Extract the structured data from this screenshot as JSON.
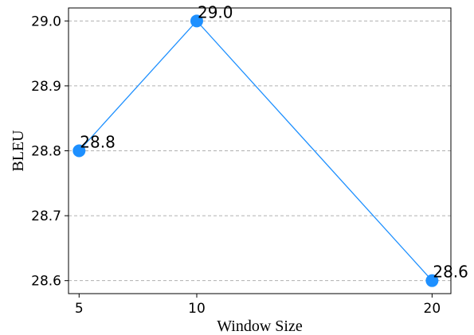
{
  "chart_data": {
    "type": "line",
    "xlabel": "Window Size",
    "ylabel": "BLEU",
    "x": [
      5,
      10,
      20
    ],
    "series": [
      {
        "values": [
          28.8,
          29.0,
          28.6
        ],
        "labels": [
          "28.8",
          "29.0",
          "28.6"
        ]
      }
    ],
    "xticks": [
      5,
      10,
      20
    ],
    "xtick_labels": [
      "5",
      "10",
      "20"
    ],
    "yticks": [
      28.6,
      28.7,
      28.8,
      28.9,
      29.0
    ],
    "ytick_labels": [
      "28.6",
      "28.7",
      "28.8",
      "28.9",
      "29.0"
    ],
    "xlim": [
      4.55,
      20.8
    ],
    "ylim": [
      28.58,
      29.02
    ],
    "grid": "horizontal dashed",
    "line_color": "#1e90ff",
    "marker_color": "#1e90ff",
    "grid_color": "#b0b0b0"
  }
}
